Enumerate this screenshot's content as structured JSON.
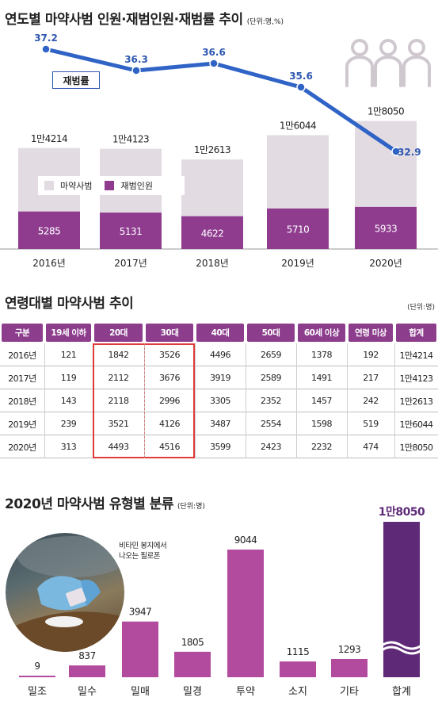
{
  "chart_data": [
    {
      "type": "bar+line",
      "title": "연도별 마약사범 인원·재범인원·재범률 추이",
      "unit": "(단위:명,%)",
      "categories": [
        "2016년",
        "2017년",
        "2018년",
        "2019년",
        "2020년"
      ],
      "series": [
        {
          "name": "마약사범",
          "type": "bar",
          "values": [
            14214,
            14123,
            12613,
            16044,
            18050
          ],
          "labels": [
            "1만4214",
            "1만4123",
            "1만2613",
            "1만6044",
            "1만8050"
          ]
        },
        {
          "name": "재범인원",
          "type": "bar",
          "values": [
            5285,
            5131,
            4622,
            5710,
            5933
          ],
          "labels": [
            "5285",
            "5131",
            "4622",
            "5710",
            "5933"
          ]
        },
        {
          "name": "재범률",
          "type": "line",
          "values": [
            37.2,
            36.3,
            36.6,
            35.6,
            32.9
          ],
          "labels": [
            "37.2",
            "36.3",
            "36.6",
            "35.6",
            "32.9"
          ]
        }
      ],
      "legend": {
        "total": "마약사범",
        "repeat": "재범인원",
        "placement": "bottom-left"
      },
      "line_label": "재범률",
      "colors": {
        "total_bar": "#e2dbe2",
        "repeat_bar": "#8f3c8f",
        "line": "#2f63c6",
        "line_label": "#2e57b0"
      }
    },
    {
      "type": "table",
      "title": "연령대별 마약사범 추이",
      "unit": "(단위:명)",
      "columns": [
        "구분",
        "19세 이하",
        "20대",
        "30대",
        "40대",
        "50대",
        "60세 이상",
        "연령 미상",
        "합계"
      ],
      "rows": [
        [
          "2016년",
          "121",
          "1842",
          "3526",
          "4496",
          "2659",
          "1378",
          "192",
          "1만4214"
        ],
        [
          "2017년",
          "119",
          "2112",
          "3676",
          "3919",
          "2589",
          "1491",
          "217",
          "1만4123"
        ],
        [
          "2018년",
          "143",
          "2118",
          "2996",
          "3305",
          "2352",
          "1457",
          "242",
          "1만2613"
        ],
        [
          "2019년",
          "239",
          "3521",
          "4126",
          "3487",
          "2554",
          "1598",
          "519",
          "1만6044"
        ],
        [
          "2020년",
          "313",
          "4493",
          "4516",
          "3599",
          "2423",
          "2232",
          "474",
          "1만8050"
        ]
      ],
      "highlighted_columns": [
        "20대",
        "30대"
      ],
      "colors": {
        "header": "#8c3d8c",
        "highlight_border": "#e03a3a"
      }
    },
    {
      "type": "bar",
      "title": "2020년 마약사범 유형별 분류",
      "unit": "(단위:명)",
      "categories": [
        "밀조",
        "밀수",
        "밀매",
        "밀경",
        "투약",
        "소지",
        "기타",
        "합계"
      ],
      "values": [
        9,
        837,
        3947,
        1805,
        9044,
        1115,
        1293,
        18050
      ],
      "labels": [
        "9",
        "837",
        "3947",
        "1805",
        "9044",
        "1115",
        "1293",
        "1만8050"
      ],
      "broken_axis_category": "합계",
      "colors": {
        "bar": "#b24a9e",
        "total_bar": "#5e2a78",
        "total_label": "#5e2a78"
      }
    }
  ],
  "photo": {
    "caption_line1": "비타민 봉지에서",
    "caption_line2": "나오는 필로폰"
  },
  "decorations": {
    "people_icon": "people-group-icon"
  }
}
